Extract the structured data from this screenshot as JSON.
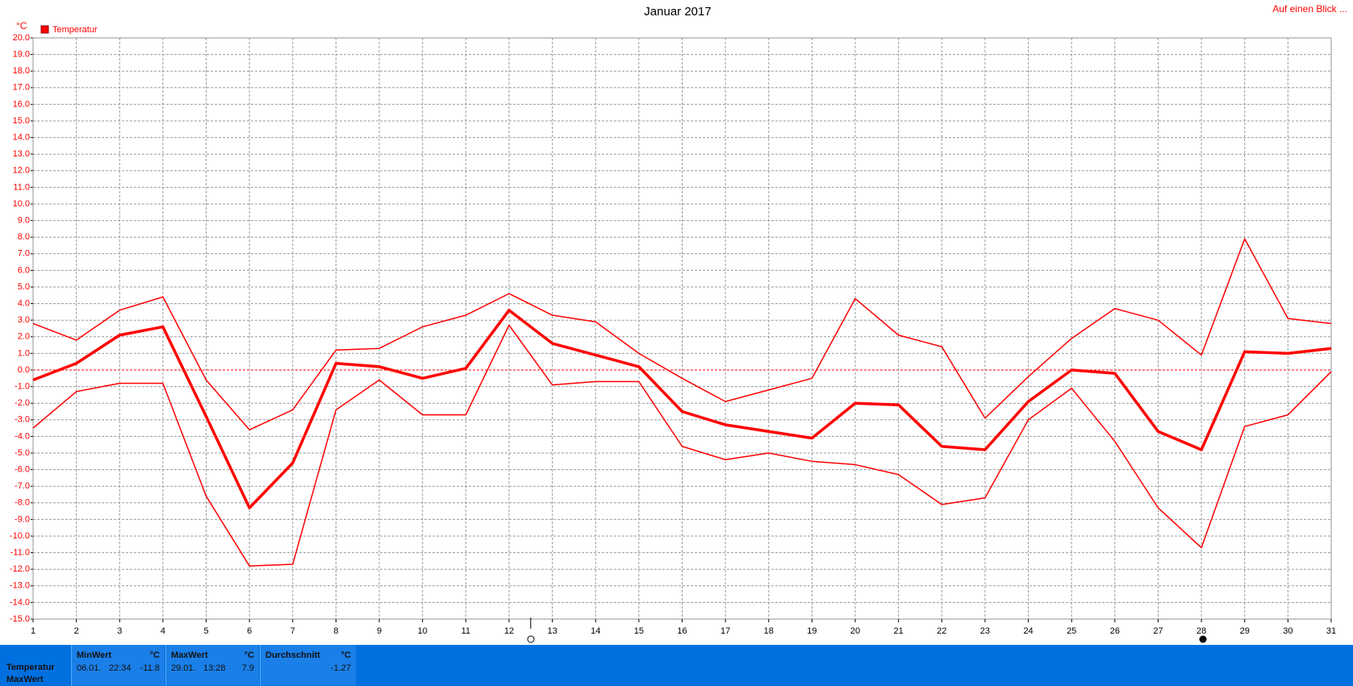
{
  "chart_data": {
    "type": "line",
    "title": "Januar 2017",
    "y_unit": "°C",
    "link": "Auf einen Blick ...",
    "x": [
      1,
      2,
      3,
      4,
      5,
      6,
      7,
      8,
      9,
      10,
      11,
      12,
      13,
      14,
      15,
      16,
      17,
      18,
      19,
      20,
      21,
      22,
      23,
      24,
      25,
      26,
      27,
      28,
      29,
      30,
      31
    ],
    "xlim": [
      1,
      31
    ],
    "xticks": [
      1,
      2,
      3,
      4,
      5,
      6,
      7,
      8,
      9,
      10,
      11,
      12,
      13,
      14,
      15,
      16,
      17,
      18,
      19,
      20,
      21,
      22,
      23,
      24,
      25,
      26,
      27,
      28,
      29,
      30,
      31
    ],
    "ylim": [
      -15,
      20
    ],
    "yticks": [
      {
        "value": 20,
        "label": "20.0"
      },
      {
        "value": 19,
        "label": "19.0"
      },
      {
        "value": 18,
        "label": "18.0"
      },
      {
        "value": 17,
        "label": "17.0"
      },
      {
        "value": 16,
        "label": "16.0"
      },
      {
        "value": 15,
        "label": "15.0"
      },
      {
        "value": 14,
        "label": "14.0"
      },
      {
        "value": 13,
        "label": "13.0"
      },
      {
        "value": 12,
        "label": "12.0"
      },
      {
        "value": 11,
        "label": "11.0"
      },
      {
        "value": 10,
        "label": "10.0"
      },
      {
        "value": 9,
        "label": "9.0"
      },
      {
        "value": 8,
        "label": "8.0"
      },
      {
        "value": 7,
        "label": "7.0"
      },
      {
        "value": 6,
        "label": "6.0"
      },
      {
        "value": 5,
        "label": "5.0"
      },
      {
        "value": 4,
        "label": "4.0"
      },
      {
        "value": 3,
        "label": "3.0"
      },
      {
        "value": 2,
        "label": "2.0"
      },
      {
        "value": 1,
        "label": "1.0"
      },
      {
        "value": 0,
        "label": "0.0"
      },
      {
        "value": -1,
        "label": "-1.0"
      },
      {
        "value": -2,
        "label": "-2.0"
      },
      {
        "value": -3,
        "label": "-3.0"
      },
      {
        "value": -4,
        "label": "-4.0"
      },
      {
        "value": -5,
        "label": "-5.0"
      },
      {
        "value": -6,
        "label": "-6.0"
      },
      {
        "value": -7,
        "label": "-7.0"
      },
      {
        "value": -8,
        "label": "-8.0"
      },
      {
        "value": -9,
        "label": "-9.0"
      },
      {
        "value": -10,
        "label": "-10.0"
      },
      {
        "value": -11,
        "label": "-11.0"
      },
      {
        "value": -12,
        "label": "-12.0"
      },
      {
        "value": -13,
        "label": "-13.0"
      },
      {
        "value": -14,
        "label": "-14.0"
      },
      {
        "value": -15,
        "label": "-15.0"
      }
    ],
    "grid": true,
    "series": [
      {
        "color": "#ff0000",
        "width": 1.5,
        "values": [
          2.8,
          1.8,
          3.6,
          4.4,
          -0.6,
          -3.6,
          -2.4,
          1.2,
          1.3,
          2.6,
          3.3,
          4.6,
          3.3,
          2.9,
          1.0,
          -0.5,
          -1.9,
          -1.2,
          -0.5,
          4.3,
          2.1,
          1.4,
          -2.9,
          -0.4,
          1.9,
          3.7,
          3.0,
          0.9,
          7.9,
          3.1,
          2.8
        ]
      },
      {
        "name": "Temperatur",
        "color": "#ff0000",
        "width": 3.5,
        "values": [
          -0.6,
          0.4,
          2.1,
          2.6,
          -2.8,
          -8.3,
          -5.6,
          0.4,
          0.2,
          -0.5,
          0.1,
          3.6,
          1.6,
          0.9,
          0.2,
          -2.5,
          -3.3,
          -3.7,
          -4.1,
          -2.0,
          -2.1,
          -4.6,
          -4.8,
          -1.9,
          0.0,
          -0.2,
          -3.7,
          -4.8,
          1.1,
          1.0,
          1.3
        ]
      },
      {
        "color": "#ff0000",
        "width": 1.5,
        "values": [
          -3.5,
          -1.3,
          -0.8,
          -0.8,
          -7.6,
          -11.8,
          -11.7,
          -2.4,
          -0.6,
          -2.7,
          -2.7,
          2.7,
          -0.9,
          -0.7,
          -0.7,
          -4.6,
          -5.4,
          -5.0,
          -5.5,
          -5.7,
          -6.3,
          -8.1,
          -7.7,
          -3.0,
          -1.1,
          -4.3,
          -8.3,
          -10.7,
          -3.4,
          -2.7,
          -0.1
        ]
      }
    ]
  },
  "summary": {
    "row_labels": [
      "Temperatur",
      "MaxWert"
    ],
    "min": {
      "header": "MinWert",
      "unit": "°C",
      "date": "06.01.",
      "time": "22:34",
      "value": -11.8
    },
    "max": {
      "header": "MaxWert",
      "unit": "°C",
      "date": "29.01.",
      "time": "13:28",
      "value": 7.9
    },
    "avg": {
      "header": "Durchschnitt",
      "unit": "°C",
      "value": -1.27
    }
  }
}
